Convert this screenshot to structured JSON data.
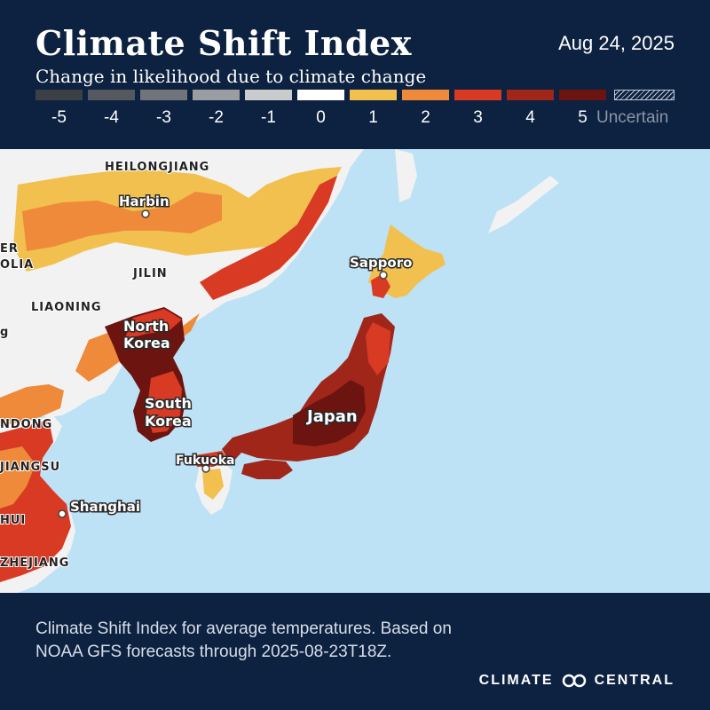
{
  "header": {
    "title": "Climate Shift Index",
    "date": "Aug 24, 2025",
    "subtitle": "Change in likelihood due to climate change"
  },
  "legend": {
    "levels": [
      {
        "label": "-5",
        "color": "#3b3f46"
      },
      {
        "label": "-4",
        "color": "#55595f"
      },
      {
        "label": "-3",
        "color": "#71757b"
      },
      {
        "label": "-2",
        "color": "#9a9da1"
      },
      {
        "label": "-1",
        "color": "#c9cbcd"
      },
      {
        "label": "0",
        "color": "#ffffff"
      },
      {
        "label": "1",
        "color": "#f2c04f"
      },
      {
        "label": "2",
        "color": "#ee8a3a"
      },
      {
        "label": "3",
        "color": "#d83a24"
      },
      {
        "label": "4",
        "color": "#a0261a"
      },
      {
        "label": "5",
        "color": "#6b1410"
      }
    ],
    "uncertain_label": "Uncertain"
  },
  "map": {
    "region_labels": {
      "heilongjiang": "HEILONGJIANG",
      "jilin": "JILIN",
      "liaoning": "LIAONING",
      "shandong": "NDONG",
      "jiangsu": "JIANGSU",
      "anhui": "HUI",
      "zhejiang": "ZHEJIANG",
      "inner_mongolia_1": "ER",
      "inner_mongolia_2": "OLIA",
      "hebei": "g"
    },
    "place_labels": {
      "harbin": "Harbin",
      "sapporo": "Sapporo",
      "north_korea_1": "North",
      "north_korea_2": "Korea",
      "south_korea_1": "South",
      "south_korea_2": "Korea",
      "japan": "Japan",
      "fukuoka": "Fukuoka",
      "shanghai": "Shanghai"
    },
    "colors": {
      "ocean": "#bde1f5",
      "land": "#f2f2f2",
      "level1": "#f2c04f",
      "level2": "#ee8a3a",
      "level3": "#d83a24",
      "level4": "#a0261a",
      "level5": "#6b1410"
    }
  },
  "footer": {
    "description": "Climate Shift Index for average temperatures. Based on NOAA GFS forecasts through 2025-08-23T18Z.",
    "brand_left": "CLIMATE",
    "brand_right": "CENTRAL",
    "brand_icon": "linked-circles-icon"
  }
}
